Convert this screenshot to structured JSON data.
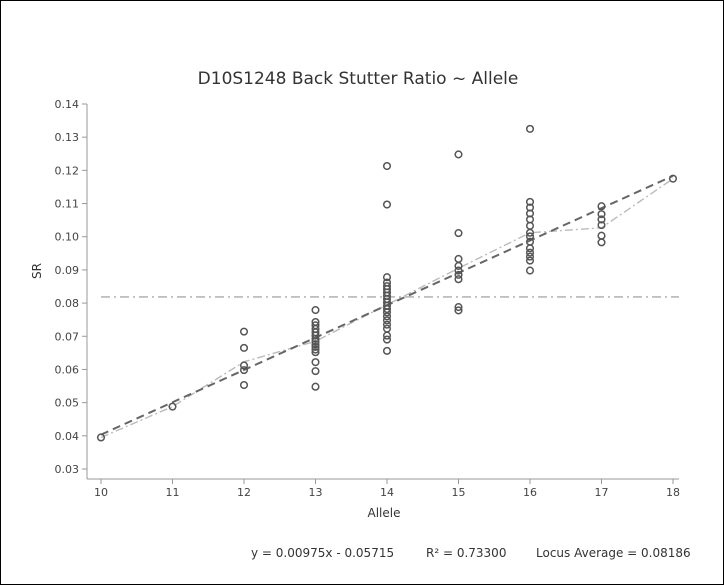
{
  "chart_data": {
    "type": "scatter",
    "title": "D10S1248 Back Stutter Ratio ~ Allele",
    "xlabel": "Allele",
    "ylabel": "SR",
    "xlim": [
      10,
      18
    ],
    "ylim": [
      0.03,
      0.14
    ],
    "x_ticks": [
      "10",
      "11",
      "12",
      "13",
      "14",
      "15",
      "16",
      "17",
      "18"
    ],
    "y_ticks": [
      "0.03",
      "0.04",
      "0.05",
      "0.06",
      "0.07",
      "0.08",
      "0.09",
      "0.10",
      "0.11",
      "0.12",
      "0.13",
      "0.14"
    ],
    "grid": false,
    "points": [
      {
        "x": 10,
        "y": 0.0395
      },
      {
        "x": 11,
        "y": 0.0488
      },
      {
        "x": 12,
        "y": 0.0714
      },
      {
        "x": 12,
        "y": 0.0665
      },
      {
        "x": 12,
        "y": 0.0612
      },
      {
        "x": 12,
        "y": 0.0598
      },
      {
        "x": 12,
        "y": 0.0553
      },
      {
        "x": 13,
        "y": 0.0779
      },
      {
        "x": 13,
        "y": 0.0743
      },
      {
        "x": 13,
        "y": 0.0733
      },
      {
        "x": 13,
        "y": 0.0722
      },
      {
        "x": 13,
        "y": 0.0712
      },
      {
        "x": 13,
        "y": 0.0702
      },
      {
        "x": 13,
        "y": 0.0692
      },
      {
        "x": 13,
        "y": 0.0684
      },
      {
        "x": 13,
        "y": 0.0676
      },
      {
        "x": 13,
        "y": 0.0668
      },
      {
        "x": 13,
        "y": 0.066
      },
      {
        "x": 13,
        "y": 0.0652
      },
      {
        "x": 13,
        "y": 0.0622
      },
      {
        "x": 13,
        "y": 0.0595
      },
      {
        "x": 13,
        "y": 0.0548
      },
      {
        "x": 14,
        "y": 0.1213
      },
      {
        "x": 14,
        "y": 0.1097
      },
      {
        "x": 14,
        "y": 0.0878
      },
      {
        "x": 14,
        "y": 0.0862
      },
      {
        "x": 14,
        "y": 0.0851
      },
      {
        "x": 14,
        "y": 0.0842
      },
      {
        "x": 14,
        "y": 0.0832
      },
      {
        "x": 14,
        "y": 0.0822
      },
      {
        "x": 14,
        "y": 0.0812
      },
      {
        "x": 14,
        "y": 0.0802
      },
      {
        "x": 14,
        "y": 0.0792
      },
      {
        "x": 14,
        "y": 0.0782
      },
      {
        "x": 14,
        "y": 0.0772
      },
      {
        "x": 14,
        "y": 0.076
      },
      {
        "x": 14,
        "y": 0.0748
      },
      {
        "x": 14,
        "y": 0.0735
      },
      {
        "x": 14,
        "y": 0.0723
      },
      {
        "x": 14,
        "y": 0.0702
      },
      {
        "x": 14,
        "y": 0.069
      },
      {
        "x": 14,
        "y": 0.0656
      },
      {
        "x": 15,
        "y": 0.1248
      },
      {
        "x": 15,
        "y": 0.1011
      },
      {
        "x": 15,
        "y": 0.0933
      },
      {
        "x": 15,
        "y": 0.0912
      },
      {
        "x": 15,
        "y": 0.0898
      },
      {
        "x": 15,
        "y": 0.0885
      },
      {
        "x": 15,
        "y": 0.0872
      },
      {
        "x": 15,
        "y": 0.0788
      },
      {
        "x": 15,
        "y": 0.0778
      },
      {
        "x": 16,
        "y": 0.1325
      },
      {
        "x": 16,
        "y": 0.1105
      },
      {
        "x": 16,
        "y": 0.1088
      },
      {
        "x": 16,
        "y": 0.107
      },
      {
        "x": 16,
        "y": 0.1052
      },
      {
        "x": 16,
        "y": 0.1033
      },
      {
        "x": 16,
        "y": 0.1012
      },
      {
        "x": 16,
        "y": 0.1001
      },
      {
        "x": 16,
        "y": 0.0985
      },
      {
        "x": 16,
        "y": 0.0965
      },
      {
        "x": 16,
        "y": 0.0952
      },
      {
        "x": 16,
        "y": 0.094
      },
      {
        "x": 16,
        "y": 0.0928
      },
      {
        "x": 16,
        "y": 0.0898
      },
      {
        "x": 17,
        "y": 0.1092
      },
      {
        "x": 17,
        "y": 0.1068
      },
      {
        "x": 17,
        "y": 0.1052
      },
      {
        "x": 17,
        "y": 0.1035
      },
      {
        "x": 17,
        "y": 0.1003
      },
      {
        "x": 17,
        "y": 0.0983
      },
      {
        "x": 18,
        "y": 0.1175
      }
    ],
    "regression_line": {
      "slope": 0.00975,
      "intercept": -0.05715
    },
    "mean_line": {
      "x": [
        10,
        11,
        12,
        13,
        14,
        15,
        16,
        17,
        18
      ],
      "y": [
        0.0395,
        0.0488,
        0.0623,
        0.0685,
        0.0795,
        0.0905,
        0.1012,
        0.1027,
        0.1175
      ]
    },
    "locus_average": 0.08186,
    "footer": {
      "equation": "y = 0.00975x - 0.05715",
      "r_squared": "R² = 0.73300",
      "locus_average_label": "Locus Average = 0.08186"
    },
    "colors": {
      "points": "#555555",
      "regression": "#666666",
      "mean_line": "#bbbbbb",
      "average_line": "#aaaaaa",
      "axis": "#999999"
    }
  }
}
